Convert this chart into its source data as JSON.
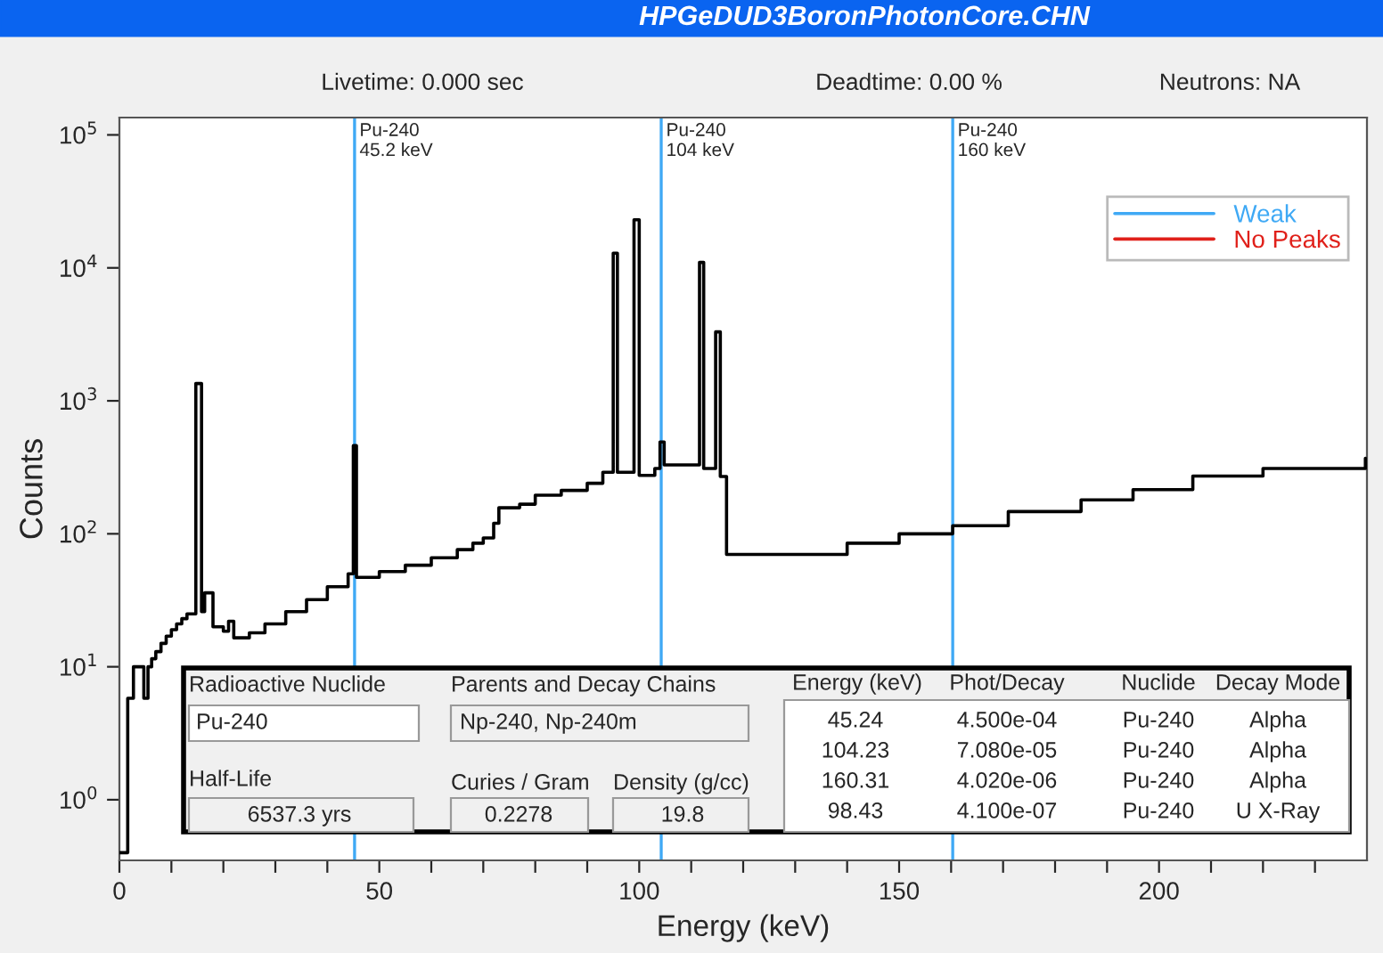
{
  "chart_data": {
    "type": "step",
    "title": "HPGeDUD3BoronPhotonCore.CHN",
    "xlabel": "Energy (keV)",
    "ylabel": "Counts",
    "log": "y",
    "xlim": [
      0,
      240
    ],
    "ylim": [
      0.35,
      135000
    ],
    "xticks": [
      0,
      {
        "value": 10,
        "label": null
      },
      {
        "value": 20,
        "label": null
      },
      {
        "value": 30,
        "label": null
      },
      {
        "value": 40,
        "label": null
      },
      50,
      {
        "value": 60,
        "label": null
      },
      {
        "value": 70,
        "label": null
      },
      {
        "value": 80,
        "label": null
      },
      {
        "value": 90,
        "label": null
      },
      100,
      {
        "value": 110,
        "label": null
      },
      {
        "value": 120,
        "label": null
      },
      {
        "value": 130,
        "label": null
      },
      {
        "value": 140,
        "label": null
      },
      150,
      {
        "value": 160,
        "label": null
      },
      {
        "value": 170,
        "label": null
      },
      {
        "value": 180,
        "label": null
      },
      {
        "value": 190,
        "label": null
      },
      200,
      {
        "value": 210,
        "label": null
      },
      {
        "value": 220,
        "label": null
      },
      {
        "value": 230,
        "label": null
      }
    ],
    "yticks": [
      {
        "value": 1,
        "label": "10$^{0}$"
      },
      {
        "value": 10,
        "label": "10$^{1}$"
      },
      {
        "value": 100,
        "label": "10$^{2}$"
      },
      {
        "value": 1000,
        "label": "10$^{3}$"
      },
      {
        "value": 10000,
        "label": "10$^{4}$"
      },
      {
        "value": 100000,
        "label": "10$^{5}$"
      }
    ],
    "grid": false,
    "legend": "top right",
    "series": [
      {
        "color": "#000000",
        "x": [
          0,
          1.6,
          2.7,
          4.7,
          5.5,
          6.2,
          7,
          8,
          9,
          10,
          11,
          12,
          13,
          14.7,
          15.8,
          16.4,
          18,
          20,
          21,
          22,
          25,
          28,
          32,
          36,
          40,
          44,
          45.0,
          45.6,
          50,
          55,
          60,
          65,
          68,
          70,
          72,
          73,
          77,
          80,
          85,
          90,
          93,
          95,
          95.8,
          99,
          100,
          103,
          104,
          104.8,
          108,
          111.6,
          112.4,
          114.7,
          115.6,
          116.8,
          127.7,
          140,
          150,
          160.3,
          171,
          185,
          195,
          206.5,
          220,
          239.7
        ],
        "values": [
          0.4,
          5.8,
          10,
          5.8,
          10,
          11.5,
          13,
          15,
          17,
          19,
          21,
          23,
          25,
          1350,
          26,
          36,
          20,
          18.5,
          22,
          16.5,
          18,
          21,
          26,
          32,
          40,
          50,
          460,
          47,
          52,
          58,
          66,
          76,
          85,
          93,
          120,
          157,
          167,
          195,
          212,
          240,
          290,
          12900,
          290,
          23000,
          275,
          310,
          490,
          330,
          330,
          11000,
          310,
          3300,
          270,
          70,
          70,
          85,
          100,
          115,
          147,
          180,
          215,
          272,
          310,
          370
        ]
      },
      {
        "type": "line",
        "name": "Weak",
        "color": "#3fa9f5"
      },
      {
        "type": "line",
        "name": "No Peaks",
        "color": "#e0201a"
      }
    ],
    "ref_lines": [
      {
        "axis": "x",
        "value": 45.24,
        "label": "Pu-240\n45.2 keV",
        "color": "#3fa9f5"
      },
      {
        "axis": "x",
        "value": 104.23,
        "label": "Pu-240\n104 keV",
        "color": "#3fa9f5"
      },
      {
        "axis": "x",
        "value": 160.31,
        "label": "Pu-240\n160 keV",
        "color": "#3fa9f5"
      }
    ],
    "annotations": [
      "Livetime: 0.000 sec",
      "Deadtime: 0.00 %",
      "Neutrons: NA",
      "Radioactive Nuclide",
      "Pu-240",
      "Parents and Decay Chains",
      "Np-240, Np-240m",
      "Half-Life",
      "6537.3 yrs",
      "Curies / Gram",
      "0.2278",
      "Density (g/cc)",
      "19.8",
      "Energy (keV)",
      "Phot/Decay",
      "Nuclide",
      "Decay Mode",
      "45.24",
      "4.500e-04",
      "Pu-240",
      "Alpha",
      "104.23",
      "7.080e-05",
      "Pu-240",
      "Alpha",
      "160.31",
      "4.020e-06",
      "Pu-240",
      "Alpha",
      "98.43",
      "4.100e-07",
      "Pu-240",
      "U X-Ray"
    ]
  }
}
